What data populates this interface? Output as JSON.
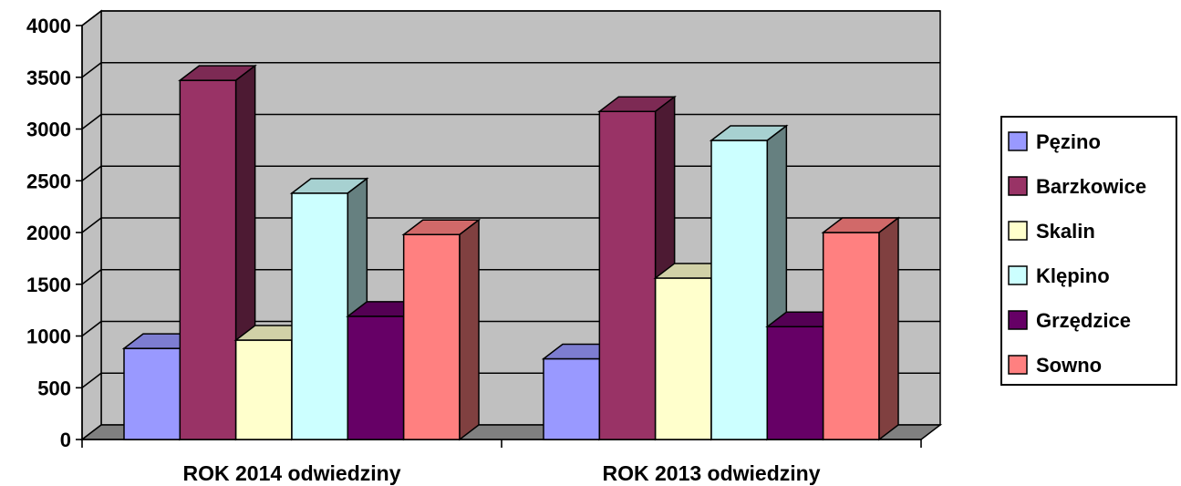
{
  "chart_data": {
    "type": "bar",
    "categories": [
      "ROK 2014 odwiedziny",
      "ROK 2013 odwiedziny"
    ],
    "series": [
      {
        "name": "Pęzino",
        "values": [
          880,
          780
        ],
        "color": "#9999FF"
      },
      {
        "name": "Barzkowice",
        "values": [
          3470,
          3170
        ],
        "color": "#993366"
      },
      {
        "name": "Skalin",
        "values": [
          960,
          1560
        ],
        "color": "#FFFFCC"
      },
      {
        "name": "Klępino",
        "values": [
          2380,
          2890
        ],
        "color": "#CCFFFF"
      },
      {
        "name": "Grzędzice",
        "values": [
          1190,
          1090
        ],
        "color": "#660066"
      },
      {
        "name": "Sowno",
        "values": [
          1980,
          2000
        ],
        "color": "#FF8080"
      }
    ],
    "ylim": [
      0,
      4000
    ],
    "yticks": [
      0,
      500,
      1000,
      1500,
      2000,
      2500,
      3000,
      3500,
      4000
    ],
    "grid": true,
    "legend": "right",
    "colors": {
      "wall": "#C0C0C0",
      "floor": "#808080",
      "gridline": "#000000"
    }
  }
}
